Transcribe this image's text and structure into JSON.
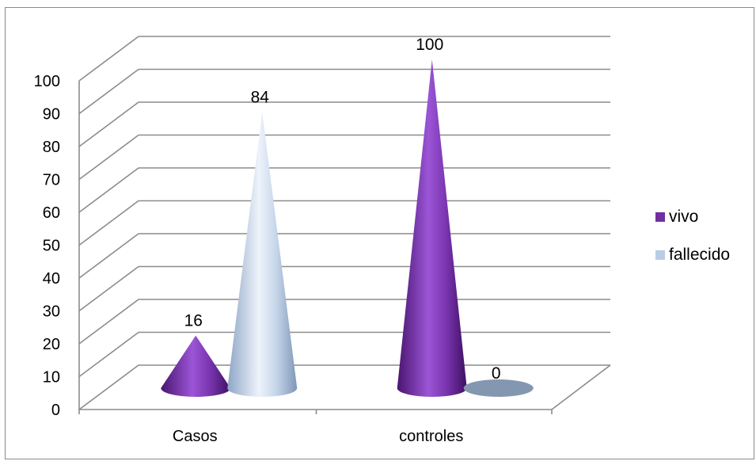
{
  "chart_data": {
    "type": "bar",
    "style": "3d-cone",
    "categories": [
      "Casos",
      "controles"
    ],
    "series": [
      {
        "name": "vivo",
        "values": [
          16,
          100
        ],
        "color": "#7030a0"
      },
      {
        "name": "fallecido",
        "values": [
          84,
          0
        ],
        "color": "#b9cde5"
      }
    ],
    "ylim": [
      0,
      100
    ],
    "yticks": [
      0,
      10,
      20,
      30,
      40,
      50,
      60,
      70,
      80,
      90,
      100
    ],
    "grid": true,
    "legend_position": "right",
    "title": "",
    "xlabel": "",
    "ylabel": ""
  }
}
